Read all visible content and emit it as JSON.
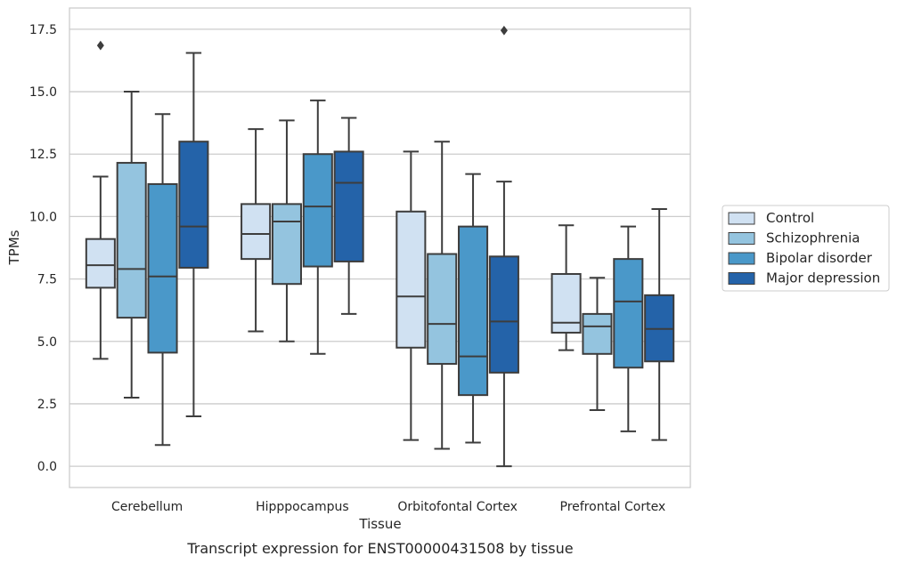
{
  "chart_data": {
    "type": "box",
    "xlabel": "Tissue",
    "ylabel": "TPMs",
    "caption": "Transcript expression for ENST00000431508 by tissue",
    "ylim": [
      -0.85,
      18.35
    ],
    "yticks": [
      "0.0",
      "2.5",
      "5.0",
      "7.5",
      "10.0",
      "12.5",
      "15.0",
      "17.5"
    ],
    "ytick_values": [
      0,
      2.5,
      5,
      7.5,
      10,
      12.5,
      15,
      17.5
    ],
    "grid": "horizontal",
    "legend_position": "right",
    "categories": [
      "Cerebellum",
      "Hipppocampus",
      "Orbitofontal Cortex",
      "Prefrontal Cortex"
    ],
    "series": [
      {
        "name": "Control",
        "color": "#d0e1f2",
        "boxes": [
          {
            "whislo": 4.3,
            "q1": 7.15,
            "med": 8.05,
            "q3": 9.1,
            "whishi": 11.6,
            "fliers": [
              16.85
            ]
          },
          {
            "whislo": 5.4,
            "q1": 8.3,
            "med": 9.3,
            "q3": 10.5,
            "whishi": 13.5,
            "fliers": []
          },
          {
            "whislo": 1.05,
            "q1": 4.75,
            "med": 6.8,
            "q3": 10.2,
            "whishi": 12.6,
            "fliers": []
          },
          {
            "whislo": 4.65,
            "q1": 5.35,
            "med": 5.75,
            "q3": 7.7,
            "whishi": 9.65,
            "fliers": []
          }
        ]
      },
      {
        "name": "Schizophrenia",
        "color": "#94c4df",
        "boxes": [
          {
            "whislo": 2.75,
            "q1": 5.95,
            "med": 7.9,
            "q3": 12.15,
            "whishi": 15.0,
            "fliers": []
          },
          {
            "whislo": 5.0,
            "q1": 7.3,
            "med": 9.8,
            "q3": 10.5,
            "whishi": 13.85,
            "fliers": []
          },
          {
            "whislo": 0.7,
            "q1": 4.1,
            "med": 5.7,
            "q3": 8.5,
            "whishi": 13.0,
            "fliers": []
          },
          {
            "whislo": 2.25,
            "q1": 4.5,
            "med": 5.6,
            "q3": 6.1,
            "whishi": 7.55,
            "fliers": []
          }
        ]
      },
      {
        "name": "Bipolar disorder",
        "color": "#4a98c9",
        "boxes": [
          {
            "whislo": 0.85,
            "q1": 4.55,
            "med": 7.6,
            "q3": 11.3,
            "whishi": 14.1,
            "fliers": []
          },
          {
            "whislo": 4.5,
            "q1": 8.0,
            "med": 10.4,
            "q3": 12.5,
            "whishi": 14.65,
            "fliers": []
          },
          {
            "whislo": 0.95,
            "q1": 2.85,
            "med": 4.4,
            "q3": 9.6,
            "whishi": 11.7,
            "fliers": []
          },
          {
            "whislo": 1.4,
            "q1": 3.95,
            "med": 6.6,
            "q3": 8.3,
            "whishi": 9.6,
            "fliers": []
          }
        ]
      },
      {
        "name": "Major depression",
        "color": "#2463a9",
        "boxes": [
          {
            "whislo": 2.0,
            "q1": 7.95,
            "med": 9.6,
            "q3": 13.0,
            "whishi": 16.55,
            "fliers": []
          },
          {
            "whislo": 6.1,
            "q1": 8.2,
            "med": 11.35,
            "q3": 12.6,
            "whishi": 13.95,
            "fliers": []
          },
          {
            "whislo": 0.0,
            "q1": 3.75,
            "med": 5.8,
            "q3": 8.4,
            "whishi": 11.4,
            "fliers": [
              17.45
            ]
          },
          {
            "whislo": 1.05,
            "q1": 4.2,
            "med": 5.5,
            "q3": 6.85,
            "whishi": 10.3,
            "fliers": []
          }
        ]
      }
    ]
  }
}
